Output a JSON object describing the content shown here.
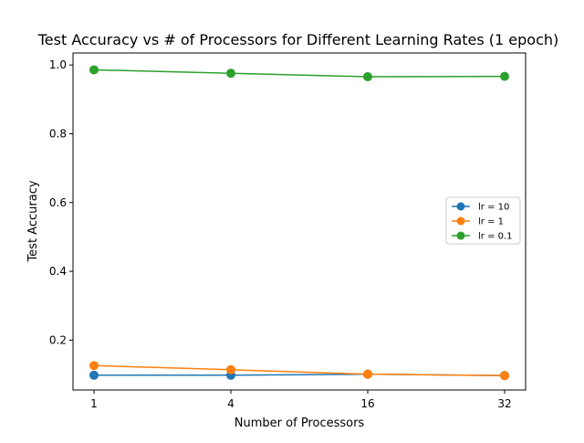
{
  "chart_data": {
    "type": "line",
    "title": "Test Accuracy vs # of Processors for Different Learning Rates (1 epoch)",
    "xlabel": "Number of Processors",
    "ylabel": "Test Accuracy",
    "categories": [
      "1",
      "4",
      "16",
      "32"
    ],
    "ylim": [
      0.055,
      1.035
    ],
    "yticks": [
      "0.2",
      "0.4",
      "0.6",
      "0.8",
      "1.0"
    ],
    "ytick_values": [
      0.2,
      0.4,
      0.6,
      0.8,
      1.0
    ],
    "grid": false,
    "legend_position": "center-right",
    "series": [
      {
        "name": "lr = 10",
        "color": "#1f77b4",
        "values": [
          0.098,
          0.098,
          0.101,
          0.097
        ]
      },
      {
        "name": "lr = 1",
        "color": "#ff7f0e",
        "values": [
          0.126,
          0.114,
          0.101,
          0.097
        ]
      },
      {
        "name": "lr = 0.1",
        "color": "#2ca02c",
        "values": [
          0.986,
          0.976,
          0.966,
          0.967
        ]
      }
    ]
  }
}
